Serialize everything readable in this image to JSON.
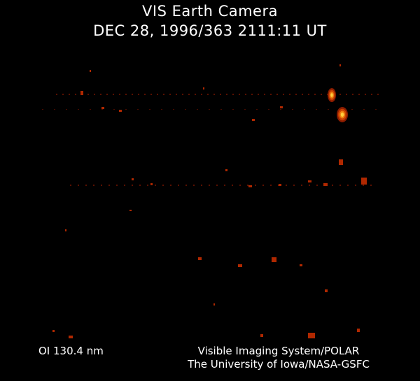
{
  "header": {
    "title": "VIS Earth Camera",
    "timestamp": "DEC 28, 1996/363 2111:11 UT"
  },
  "footer": {
    "filter": "OI  130.4 nm",
    "credit_line1": "Visible Imaging System/POLAR",
    "credit_line2": "The University of Iowa/NASA-GSFC"
  },
  "colors": {
    "background": "#000000",
    "emission_bright": "#ffd040",
    "emission_dim": "#a02000"
  }
}
